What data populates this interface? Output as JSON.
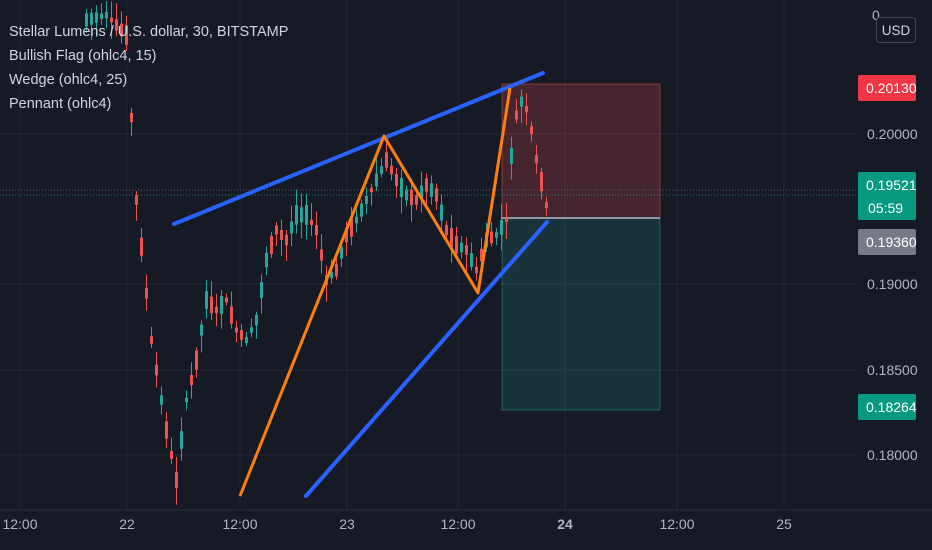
{
  "chart_data": {
    "type": "candlestick",
    "title": "Stellar Lumens / U.S. dollar, 30, BITSTAMP",
    "indicators": [
      "Bullish Flag (ohlc4, 15)",
      "Wedge (ohlc4, 25)",
      "Pennant (ohlc4)"
    ],
    "currency": "USD",
    "y_axis": {
      "ticks": [
        "0.20000",
        "0.19000",
        "0.18500",
        "0.18000"
      ],
      "top_partial_label": "0"
    },
    "x_axis": {
      "ticks": [
        "12:00",
        "22",
        "12:00",
        "23",
        "12:00",
        "24",
        "12:00",
        "25"
      ]
    },
    "price_tags": [
      {
        "label": "0.20130",
        "color": "#f23645"
      },
      {
        "label": "0.19521",
        "sublabel": "05:59",
        "color": "#089981"
      },
      {
        "label": "0.19360",
        "color": "#787b86"
      },
      {
        "label": "0.18264",
        "color": "#089981"
      }
    ],
    "colors": {
      "up": "#26a69a",
      "down": "#ef5350",
      "wedge": "#2962ff",
      "pattern": "#ff7f0e"
    },
    "last_price": 0.19521
  }
}
